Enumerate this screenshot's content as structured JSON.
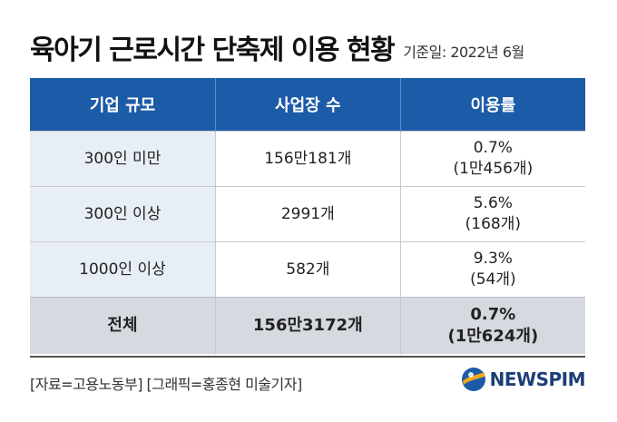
{
  "header": {
    "title": "육아기 근로시간 단축제 이용 현황",
    "basis_date": "기준일: 2022년 6월"
  },
  "table": {
    "columns": [
      "기업 규모",
      "사업장 수",
      "이용률"
    ],
    "rows": [
      {
        "size": "300인 미만",
        "workplaces": "156만181개",
        "rate": "0.7%",
        "rate_count": "(1만456개)"
      },
      {
        "size": "300인 이상",
        "workplaces": "2991개",
        "rate": "5.6%",
        "rate_count": "(168개)"
      },
      {
        "size": "1000인 이상",
        "workplaces": "582개",
        "rate": "9.3%",
        "rate_count": "(54개)"
      }
    ],
    "total": {
      "size": "전체",
      "workplaces": "156만3172개",
      "rate": "0.7%",
      "rate_count": "(1만624개)"
    }
  },
  "footer": {
    "source": "[자료=고용노동부] [그래픽=홍종현 미술기자]",
    "logo_text": "NEWSPIM",
    "logo_icon": "newspim-globe-icon"
  },
  "colors": {
    "header_bg": "#1c5ba8",
    "first_col_bg": "#e8eef6",
    "total_bg": "#d6d9df"
  }
}
